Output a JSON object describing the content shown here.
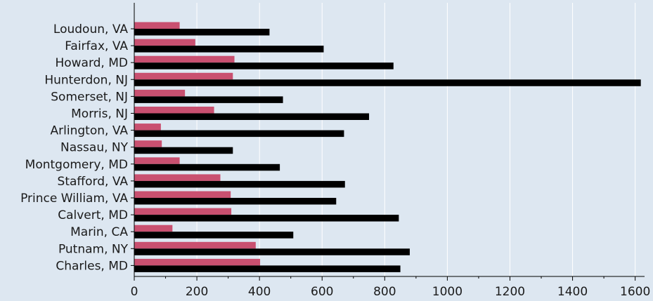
{
  "chart_data": {
    "type": "bar",
    "orientation": "horizontal",
    "categories": [
      "Loudoun, VA",
      "Fairfax, VA",
      "Howard, MD",
      "Hunterdon, NJ",
      "Somerset, NJ",
      "Morris, NJ",
      "Arlington, VA",
      "Nassau, NY",
      "Montgomery, MD",
      "Stafford, VA",
      "Prince William, VA",
      "Calvert, MD",
      "Marin, CA",
      "Putnam, NY",
      "Charles, MD"
    ],
    "series": [
      {
        "color": "#c95070",
        "values": [
          145,
          195,
          320,
          315,
          162,
          255,
          85,
          88,
          145,
          275,
          308,
          310,
          122,
          388,
          402
        ]
      },
      {
        "color": "#000000",
        "values": [
          432,
          605,
          828,
          1618,
          475,
          750,
          670,
          315,
          465,
          673,
          645,
          845,
          508,
          880,
          850
        ]
      }
    ],
    "xlim": [
      0,
      1630
    ],
    "xticks": [
      0,
      200,
      400,
      600,
      800,
      1000,
      1200,
      1400,
      1600
    ],
    "grid": "vertical",
    "title": "",
    "xlabel": "",
    "ylabel": "",
    "background": "#dde7f1",
    "grid_color": "#ffffff"
  }
}
